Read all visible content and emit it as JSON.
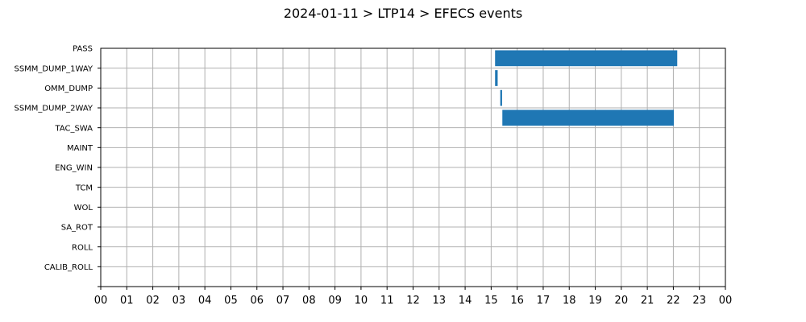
{
  "chart_data": {
    "type": "bar",
    "orientation": "horizontal",
    "title": "2024-01-11 > LTP14 > EFECS events",
    "xlabel": "",
    "ylabel": "",
    "xlim": [
      0,
      24
    ],
    "x_tick_labels": [
      "00",
      "01",
      "02",
      "03",
      "04",
      "05",
      "06",
      "07",
      "08",
      "09",
      "10",
      "11",
      "12",
      "13",
      "14",
      "15",
      "16",
      "17",
      "18",
      "19",
      "20",
      "21",
      "22",
      "23",
      "00"
    ],
    "categories": [
      "PASS",
      "SSMM_DUMP_1WAY",
      "OMM_DUMP",
      "SSMM_DUMP_2WAY",
      "TAC_SWA",
      "MAINT",
      "ENG_WIN",
      "TCM",
      "WOL",
      "SA_ROT",
      "ROLL",
      "CALIB_ROLL"
    ],
    "series": [
      {
        "color": "#1f77b4",
        "intervals": [
          {
            "category": "PASS",
            "start": 15.15,
            "end": 22.15
          },
          {
            "category": "SSMM_DUMP_1WAY",
            "start": 15.15,
            "end": 15.25
          },
          {
            "category": "OMM_DUMP",
            "start": 15.35,
            "end": 15.42
          },
          {
            "category": "SSMM_DUMP_2WAY",
            "start": 15.43,
            "end": 22.02
          }
        ]
      }
    ],
    "grid": true,
    "legend": "none"
  }
}
